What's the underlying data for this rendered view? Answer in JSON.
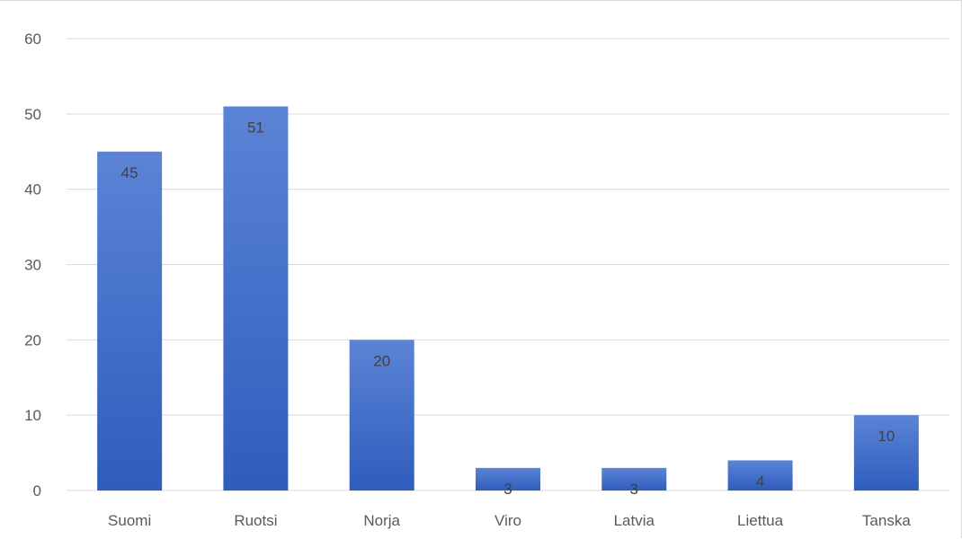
{
  "chart_data": {
    "type": "bar",
    "categories": [
      "Suomi",
      "Ruotsi",
      "Norja",
      "Viro",
      "Latvia",
      "Liettua",
      "Tanska"
    ],
    "values": [
      45,
      51,
      20,
      3,
      3,
      4,
      10
    ],
    "title": "",
    "xlabel": "",
    "ylabel": "",
    "ylim": [
      0,
      60
    ],
    "yticks": [
      0,
      10,
      20,
      30,
      40,
      50,
      60
    ],
    "grid": true,
    "data_labels": true,
    "legend": "none",
    "colors": {
      "bar_top": "#5b84d6",
      "bar_bottom": "#2f5dbd",
      "gridline": "#d9d9d9",
      "axis_text": "#595959",
      "label_text": "#404040"
    }
  }
}
